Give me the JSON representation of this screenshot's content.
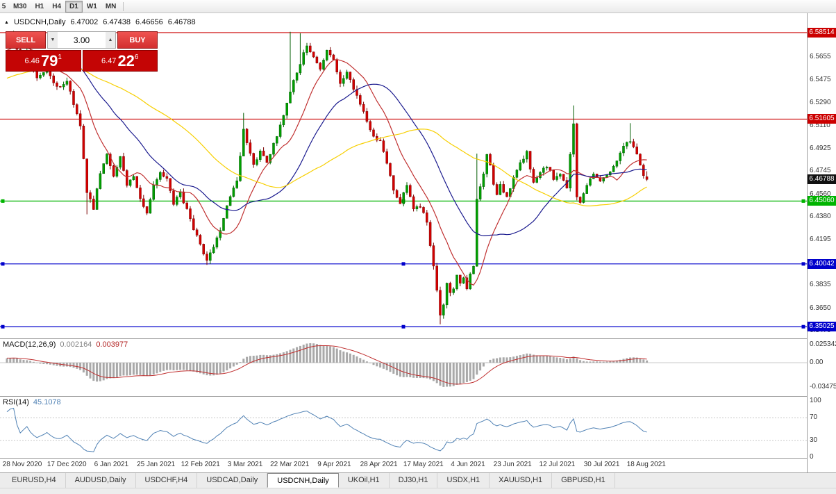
{
  "app": {
    "timeframe_toolbar": [
      {
        "label": "5",
        "active": false
      },
      {
        "label": "M30",
        "active": false
      },
      {
        "label": "H1",
        "active": false
      },
      {
        "label": "H4",
        "active": false
      },
      {
        "label": "D1",
        "active": true
      },
      {
        "label": "W1",
        "active": false
      },
      {
        "label": "MN",
        "active": false
      }
    ]
  },
  "header": {
    "icon": "▲",
    "symbol": "USDCNH,Daily",
    "open": "6.47002",
    "high": "6.47438",
    "low": "6.46656",
    "close": "6.46788"
  },
  "trade_panel": {
    "sell_label": "SELL",
    "buy_label": "BUY",
    "volume": "3.00",
    "decrease_icon": "▼",
    "increase_icon": "▲",
    "sell_price": {
      "prefix": "6.46",
      "big": "79",
      "sup": "1"
    },
    "buy_price": {
      "prefix": "6.47",
      "big": "22",
      "sup": "6"
    }
  },
  "price_axis": {
    "labels": [
      "6.5655",
      "6.5475",
      "6.5290",
      "6.5110",
      "6.4925",
      "6.4745",
      "6.4560",
      "6.4380",
      "6.4195",
      "6.4015",
      "6.3835",
      "6.3650",
      "6.3470"
    ],
    "current_price": {
      "label": "6.46788",
      "value": 6.46788,
      "color": "#111111"
    }
  },
  "levels": [
    {
      "value": 6.58514,
      "label": "6.58514",
      "color": "#cc0000",
      "handles": false
    },
    {
      "value": 6.51605,
      "label": "6.51605",
      "color": "#cc0000",
      "handles": false
    },
    {
      "value": 6.4506,
      "label": "6.45060",
      "color": "#00b400",
      "handles": true
    },
    {
      "value": 6.40042,
      "label": "6.40042",
      "color": "#0000cc",
      "handles": true
    },
    {
      "value": 6.35025,
      "label": "6.35025",
      "color": "#0000cc",
      "handles": true
    }
  ],
  "macd": {
    "name": "MACD(12,26,9)",
    "value_main": "0.002164",
    "value_signal": "0.003977",
    "axis_top": "0.025342",
    "axis_zero": "0.00",
    "axis_bottom": "-0.034757"
  },
  "rsi": {
    "name": "RSI(14)",
    "value": "45.1078",
    "axis": [
      "100",
      "70",
      "30",
      "0"
    ],
    "levels": [
      70,
      30
    ]
  },
  "tabs": [
    {
      "label": "EURUSD,H4",
      "active": false
    },
    {
      "label": "AUDUSD,Daily",
      "active": false
    },
    {
      "label": "USDCHF,H4",
      "active": false
    },
    {
      "label": "USDCAD,Daily",
      "active": false
    },
    {
      "label": "USDCNH,Daily",
      "active": true
    },
    {
      "label": "UKOil,H1",
      "active": false
    },
    {
      "label": "DJ30,H1",
      "active": false
    },
    {
      "label": "USDX,H1",
      "active": false
    },
    {
      "label": "XAUUSD,H1",
      "active": false
    },
    {
      "label": "GBPUSD,H1",
      "active": false
    }
  ],
  "chart_data": {
    "type": "candlestick",
    "symbol": "USDCNH",
    "timeframe": "Daily",
    "count": 193,
    "dates": [
      "28 Nov 2020",
      "17 Dec 2020",
      "6 Jan 2021",
      "25 Jan 2021",
      "12 Feb 2021",
      "3 Mar 2021",
      "22 Mar 2021",
      "9 Apr 2021",
      "28 Apr 2021",
      "17 May 2021",
      "4 Jun 2021",
      "23 Jun 2021",
      "12 Jul 2021",
      "30 Jul 2021",
      "18 Aug 2021"
    ],
    "price_range": [
      6.341,
      6.589
    ],
    "ohlc_last": {
      "o": 6.47002,
      "h": 6.47438,
      "l": 6.46656,
      "c": 6.46788
    },
    "price_waypoints": [
      [
        0,
        6.575
      ],
      [
        2,
        6.583
      ],
      [
        4,
        6.561
      ],
      [
        6,
        6.569
      ],
      [
        9,
        6.549
      ],
      [
        12,
        6.557
      ],
      [
        15,
        6.541
      ],
      [
        18,
        6.546
      ],
      [
        20,
        6.528
      ],
      [
        22,
        6.51
      ],
      [
        24,
        6.458
      ],
      [
        26,
        6.444
      ],
      [
        28,
        6.474
      ],
      [
        30,
        6.488
      ],
      [
        32,
        6.47
      ],
      [
        34,
        6.486
      ],
      [
        36,
        6.462
      ],
      [
        38,
        6.471
      ],
      [
        40,
        6.452
      ],
      [
        42,
        6.441
      ],
      [
        44,
        6.463
      ],
      [
        46,
        6.473
      ],
      [
        48,
        6.468
      ],
      [
        50,
        6.449
      ],
      [
        52,
        6.457
      ],
      [
        54,
        6.443
      ],
      [
        56,
        6.429
      ],
      [
        58,
        6.416
      ],
      [
        60,
        6.403
      ],
      [
        62,
        6.413
      ],
      [
        64,
        6.428
      ],
      [
        66,
        6.446
      ],
      [
        68,
        6.461
      ],
      [
        69,
        6.468
      ],
      [
        71,
        6.508
      ],
      [
        73,
        6.489
      ],
      [
        74,
        6.479
      ],
      [
        76,
        6.491
      ],
      [
        78,
        6.481
      ],
      [
        80,
        6.496
      ],
      [
        82,
        6.511
      ],
      [
        84,
        6.528
      ],
      [
        86,
        6.546
      ],
      [
        88,
        6.561
      ],
      [
        90,
        6.576
      ],
      [
        92,
        6.566
      ],
      [
        94,
        6.557
      ],
      [
        96,
        6.571
      ],
      [
        98,
        6.563
      ],
      [
        100,
        6.546
      ],
      [
        102,
        6.553
      ],
      [
        104,
        6.541
      ],
      [
        106,
        6.529
      ],
      [
        108,
        6.513
      ],
      [
        110,
        6.501
      ],
      [
        112,
        6.498
      ],
      [
        114,
        6.481
      ],
      [
        116,
        6.459
      ],
      [
        118,
        6.449
      ],
      [
        120,
        6.463
      ],
      [
        122,
        6.445
      ],
      [
        124,
        6.447
      ],
      [
        126,
        6.433
      ],
      [
        128,
        6.399
      ],
      [
        130,
        6.36
      ],
      [
        131,
        6.369
      ],
      [
        132,
        6.386
      ],
      [
        133,
        6.376
      ],
      [
        134,
        6.381
      ],
      [
        135,
        6.392
      ],
      [
        136,
        6.385
      ],
      [
        137,
        6.389
      ],
      [
        138,
        6.381
      ],
      [
        139,
        6.393
      ],
      [
        140,
        6.399
      ],
      [
        141,
        6.452
      ],
      [
        142,
        6.461
      ],
      [
        143,
        6.471
      ],
      [
        144,
        6.488
      ],
      [
        145,
        6.479
      ],
      [
        146,
        6.463
      ],
      [
        147,
        6.456
      ],
      [
        148,
        6.463
      ],
      [
        150,
        6.453
      ],
      [
        152,
        6.471
      ],
      [
        154,
        6.481
      ],
      [
        156,
        6.489
      ],
      [
        158,
        6.466
      ],
      [
        160,
        6.473
      ],
      [
        162,
        6.479
      ],
      [
        164,
        6.469
      ],
      [
        166,
        6.473
      ],
      [
        168,
        6.461
      ],
      [
        170,
        6.512
      ],
      [
        171,
        6.455
      ],
      [
        172,
        6.449
      ],
      [
        174,
        6.463
      ],
      [
        176,
        6.473
      ],
      [
        178,
        6.467
      ],
      [
        180,
        6.471
      ],
      [
        182,
        6.479
      ],
      [
        184,
        6.489
      ],
      [
        186,
        6.499
      ],
      [
        188,
        6.495
      ],
      [
        190,
        6.479
      ],
      [
        191,
        6.472
      ],
      [
        192,
        6.468
      ]
    ],
    "wick_events": [
      {
        "i": 2,
        "high": 6.5866
      },
      {
        "i": 24,
        "low": 6.44
      },
      {
        "i": 60,
        "low": 6.3996
      },
      {
        "i": 71,
        "high": 6.521
      },
      {
        "i": 85,
        "high": 6.5858
      },
      {
        "i": 88,
        "high": 6.5846
      },
      {
        "i": 130,
        "low": 6.3522
      },
      {
        "i": 141,
        "high": 6.4885
      },
      {
        "i": 170,
        "high": 6.527
      },
      {
        "i": 187,
        "high": 6.5128
      }
    ],
    "moving_averages": [
      {
        "period": 13,
        "color": "#c03030"
      },
      {
        "period": 30,
        "color": "#1a1a8e"
      },
      {
        "period": 60,
        "color": "#f7cf00"
      }
    ],
    "indicators": {
      "macd": {
        "fast": 12,
        "slow": 26,
        "signal": 9,
        "current_main": 0.002164,
        "current_signal": 0.003977
      },
      "rsi": {
        "period": 14,
        "current": 45.1078
      }
    },
    "horizontal_levels": [
      6.58514,
      6.51605,
      6.4506,
      6.40042,
      6.35025
    ]
  }
}
